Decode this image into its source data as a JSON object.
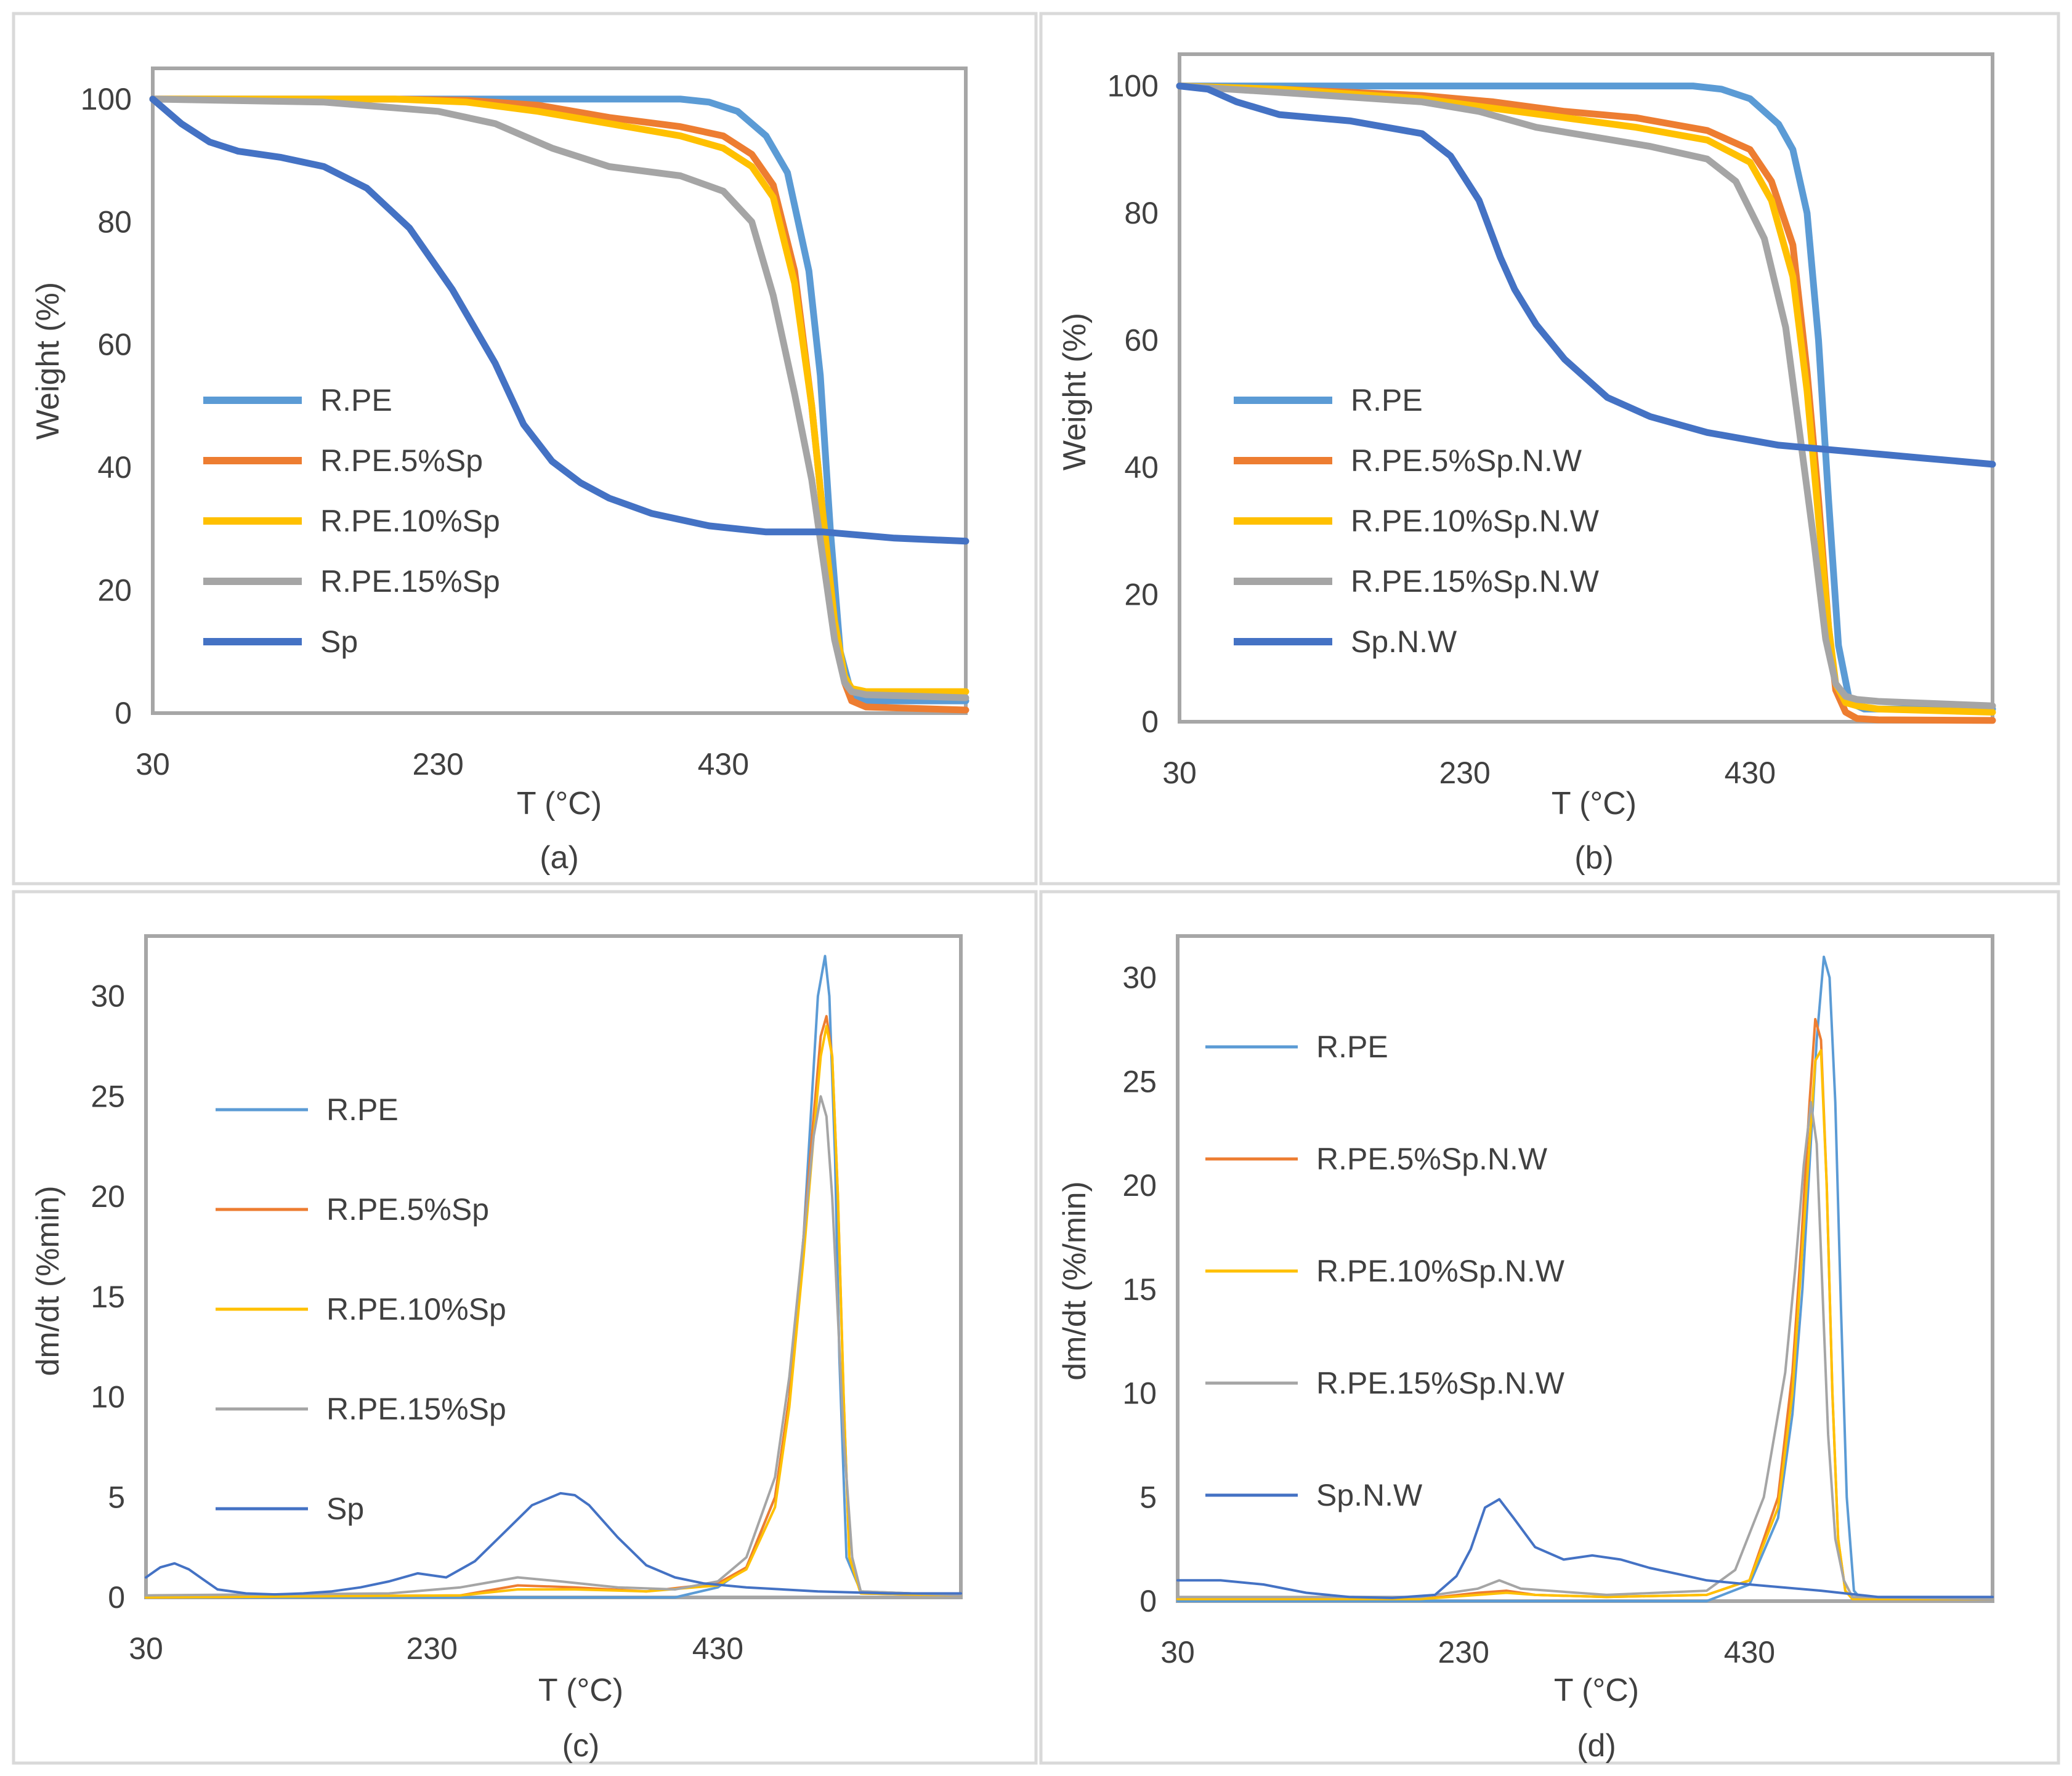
{
  "colors": {
    "R.PE": "#5b9bd5",
    "5pct": "#ed7d31",
    "10pct": "#ffc000",
    "15pct": "#a5a5a5",
    "Sp": "#4472c4"
  },
  "chart_data": [
    {
      "type": "line",
      "caption": "(a)",
      "xlabel": "T (°C)",
      "ylabel": "Weight (%)",
      "xlim": [
        30,
        600
      ],
      "ylim": [
        0,
        105
      ],
      "xticks": [
        30,
        230,
        430
      ],
      "yticks": [
        0,
        20,
        40,
        60,
        80,
        100
      ],
      "series": [
        {
          "name": "R.PE",
          "color": "#5b9bd5",
          "x": [
            30,
            200,
            400,
            420,
            440,
            460,
            475,
            490,
            498,
            505,
            512,
            520,
            530,
            600
          ],
          "y": [
            100,
            100,
            100,
            99.5,
            98,
            94,
            88,
            72,
            55,
            30,
            10,
            3,
            2,
            2
          ]
        },
        {
          "name": "R.PE.5%Sp",
          "color": "#ed7d31",
          "x": [
            30,
            200,
            250,
            300,
            350,
            400,
            430,
            450,
            465,
            480,
            492,
            500,
            508,
            515,
            520,
            530,
            600
          ],
          "y": [
            100,
            100,
            99.8,
            99,
            97,
            95.5,
            94,
            91,
            86,
            72,
            50,
            32,
            15,
            5,
            2,
            1,
            0.5
          ]
        },
        {
          "name": "R.PE.10%Sp",
          "color": "#ffc000",
          "x": [
            30,
            200,
            250,
            300,
            350,
            400,
            430,
            450,
            465,
            480,
            492,
            500,
            508,
            515,
            520,
            530,
            600
          ],
          "y": [
            100,
            100,
            99.5,
            98,
            96,
            94,
            92,
            89,
            84,
            70,
            50,
            32,
            15,
            6,
            4,
            3.5,
            3.5
          ]
        },
        {
          "name": "R.PE.15%Sp",
          "color": "#a5a5a5",
          "x": [
            30,
            150,
            230,
            270,
            310,
            350,
            400,
            430,
            450,
            465,
            480,
            492,
            500,
            508,
            515,
            520,
            530,
            600
          ],
          "y": [
            100,
            99.5,
            98,
            96,
            92,
            89,
            87.5,
            85,
            80,
            68,
            52,
            38,
            25,
            12,
            5,
            3.5,
            3,
            2.5
          ]
        },
        {
          "name": "Sp",
          "color": "#4472c4",
          "x": [
            30,
            50,
            70,
            90,
            120,
            150,
            180,
            210,
            240,
            270,
            290,
            310,
            330,
            350,
            380,
            420,
            460,
            500,
            550,
            600
          ],
          "y": [
            100,
            96,
            93,
            91.5,
            90.5,
            89,
            85.5,
            79,
            69,
            57,
            47,
            41,
            37.5,
            35,
            32.5,
            30.5,
            29.5,
            29.5,
            28.5,
            28
          ]
        }
      ]
    },
    {
      "type": "line",
      "caption": "(b)",
      "xlabel": "T (°C)",
      "ylabel": "Weight (%)",
      "xlim": [
        30,
        600
      ],
      "ylim": [
        0,
        105
      ],
      "xticks": [
        30,
        230,
        430
      ],
      "yticks": [
        0,
        20,
        40,
        60,
        80,
        100
      ],
      "series": [
        {
          "name": "R.PE",
          "color": "#5b9bd5",
          "x": [
            30,
            200,
            390,
            410,
            430,
            450,
            460,
            470,
            478,
            485,
            492,
            500,
            510,
            600
          ],
          "y": [
            100,
            100,
            100,
            99.5,
            98,
            94,
            90,
            80,
            60,
            35,
            12,
            3,
            2,
            2
          ]
        },
        {
          "name": "R.PE.5%Sp.N.W",
          "color": "#ed7d31",
          "x": [
            30,
            100,
            200,
            250,
            300,
            350,
            400,
            430,
            445,
            460,
            470,
            478,
            485,
            490,
            497,
            505,
            520,
            600
          ],
          "y": [
            100,
            99.5,
            98.5,
            97.5,
            96,
            95,
            93,
            90,
            85,
            75,
            55,
            35,
            15,
            5,
            1.5,
            0.5,
            0.3,
            0.2
          ]
        },
        {
          "name": "R.PE.10%Sp.N.W",
          "color": "#ffc000",
          "x": [
            30,
            100,
            200,
            250,
            300,
            350,
            400,
            430,
            445,
            460,
            470,
            478,
            485,
            490,
            497,
            505,
            520,
            600
          ],
          "y": [
            100,
            99.5,
            98,
            96.5,
            95,
            93.5,
            91.5,
            88,
            82,
            70,
            52,
            32,
            15,
            6,
            3,
            2.5,
            2,
            1.5
          ]
        },
        {
          "name": "R.PE.15%Sp.N.W",
          "color": "#a5a5a5",
          "x": [
            30,
            100,
            200,
            240,
            280,
            320,
            360,
            400,
            420,
            440,
            455,
            465,
            475,
            483,
            490,
            497,
            505,
            520,
            600
          ],
          "y": [
            100,
            99,
            97.5,
            96,
            93.5,
            92,
            90.5,
            88.5,
            85,
            76,
            62,
            45,
            28,
            13,
            6,
            4,
            3.5,
            3.2,
            2.5
          ]
        },
        {
          "name": "Sp.N.W",
          "color": "#4472c4",
          "x": [
            30,
            50,
            70,
            100,
            150,
            200,
            220,
            240,
            255,
            265,
            280,
            300,
            330,
            360,
            400,
            450,
            500,
            550,
            600
          ],
          "y": [
            100,
            99.5,
            97.5,
            95.5,
            94.5,
            92.5,
            89,
            82,
            73,
            68,
            62.5,
            57,
            51,
            48,
            45.5,
            43.5,
            42.5,
            41.5,
            40.5
          ]
        }
      ]
    },
    {
      "type": "line",
      "caption": "(c)",
      "xlabel": "T (°C)",
      "ylabel": "dm/dt (%min)",
      "xlim": [
        30,
        600
      ],
      "ylim": [
        0,
        33
      ],
      "xticks": [
        30,
        230,
        430
      ],
      "yticks": [
        0,
        5,
        10,
        15,
        20,
        25,
        30
      ],
      "series": [
        {
          "name": "R.PE",
          "color": "#5b9bd5",
          "x": [
            30,
            400,
            430,
            450,
            470,
            480,
            490,
            495,
            500,
            505,
            508,
            512,
            515,
            520,
            530,
            600
          ],
          "y": [
            0,
            0,
            0.5,
            1.5,
            5,
            10,
            18,
            24,
            30,
            32,
            30,
            22,
            12,
            2,
            0.3,
            0.1
          ]
        },
        {
          "name": "R.PE.5%Sp",
          "color": "#ed7d31",
          "x": [
            30,
            250,
            290,
            330,
            380,
            430,
            450,
            470,
            480,
            490,
            497,
            502,
            506,
            510,
            514,
            518,
            522,
            530,
            600
          ],
          "y": [
            0,
            0.1,
            0.6,
            0.5,
            0.3,
            0.7,
            1.5,
            5,
            10,
            18,
            24,
            28,
            29,
            27,
            20,
            10,
            2,
            0.2,
            0.1
          ]
        },
        {
          "name": "R.PE.10%Sp",
          "color": "#ffc000",
          "x": [
            30,
            250,
            290,
            330,
            380,
            430,
            450,
            470,
            480,
            490,
            497,
            502,
            506,
            510,
            514,
            518,
            522,
            530,
            600
          ],
          "y": [
            0,
            0.1,
            0.4,
            0.4,
            0.3,
            0.6,
            1.4,
            4.5,
            9.5,
            17,
            23,
            27,
            28.5,
            27,
            20,
            10,
            2,
            0.2,
            0.1
          ]
        },
        {
          "name": "R.PE.15%Sp",
          "color": "#a5a5a5",
          "x": [
            30,
            200,
            250,
            290,
            320,
            360,
            400,
            430,
            450,
            470,
            480,
            490,
            497,
            502,
            506,
            510,
            514,
            518,
            524,
            530,
            600
          ],
          "y": [
            0.1,
            0.2,
            0.5,
            1,
            0.8,
            0.5,
            0.4,
            0.8,
            2,
            6,
            11,
            18,
            23,
            25,
            24,
            20,
            14,
            8,
            2,
            0.3,
            0.1
          ]
        },
        {
          "name": "Sp",
          "color": "#4472c4",
          "x": [
            30,
            40,
            50,
            60,
            70,
            80,
            100,
            120,
            140,
            160,
            180,
            200,
            220,
            240,
            260,
            280,
            300,
            320,
            330,
            340,
            360,
            380,
            400,
            420,
            450,
            500,
            550,
            600
          ],
          "y": [
            1,
            1.5,
            1.7,
            1.4,
            0.9,
            0.4,
            0.2,
            0.15,
            0.2,
            0.3,
            0.5,
            0.8,
            1.2,
            1,
            1.8,
            3.2,
            4.6,
            5.2,
            5.1,
            4.6,
            3,
            1.6,
            1,
            0.7,
            0.5,
            0.3,
            0.2,
            0.2
          ]
        }
      ]
    },
    {
      "type": "line",
      "caption": "(d)",
      "xlabel": "T (°C)",
      "ylabel": "dm/dt (%/min)",
      "xlim": [
        30,
        600
      ],
      "ylim": [
        0,
        32
      ],
      "xticks": [
        30,
        230,
        430
      ],
      "yticks": [
        0,
        5,
        10,
        15,
        20,
        25,
        30
      ],
      "series": [
        {
          "name": "R.PE",
          "color": "#5b9bd5",
          "x": [
            30,
            400,
            430,
            450,
            460,
            467,
            472,
            477,
            482,
            486,
            490,
            494,
            498,
            503,
            508,
            600
          ],
          "y": [
            0,
            0,
            0.8,
            4,
            9,
            15,
            21,
            27,
            31,
            30,
            24,
            14,
            5,
            0.5,
            0.1,
            0.1
          ]
        },
        {
          "name": "R.PE.5%Sp.N.W",
          "color": "#ed7d31",
          "x": [
            30,
            200,
            240,
            260,
            280,
            330,
            400,
            430,
            450,
            460,
            466,
            472,
            476,
            480,
            484,
            488,
            492,
            497,
            502,
            600
          ],
          "y": [
            0.1,
            0.1,
            0.4,
            0.5,
            0.3,
            0.2,
            0.3,
            1,
            5,
            11,
            17,
            24,
            28,
            27,
            20,
            10,
            3,
            0.5,
            0.1,
            0.1
          ]
        },
        {
          "name": "R.PE.10%Sp.N.W",
          "color": "#ffc000",
          "x": [
            30,
            200,
            240,
            260,
            280,
            330,
            400,
            430,
            450,
            460,
            466,
            472,
            476,
            480,
            484,
            488,
            492,
            497,
            502,
            600
          ],
          "y": [
            0.1,
            0.1,
            0.3,
            0.4,
            0.3,
            0.2,
            0.3,
            1,
            4.5,
            10,
            16,
            22,
            26,
            26.5,
            20,
            10,
            3,
            0.5,
            0.1,
            0.1
          ]
        },
        {
          "name": "R.PE.15%Sp.N.W",
          "color": "#a5a5a5",
          "x": [
            30,
            200,
            240,
            255,
            270,
            330,
            400,
            420,
            440,
            455,
            462,
            468,
            473,
            477,
            481,
            485,
            490,
            496,
            502,
            600
          ],
          "y": [
            0.2,
            0.2,
            0.6,
            1,
            0.6,
            0.3,
            0.5,
            1.5,
            5,
            11,
            16,
            21,
            24,
            22,
            15,
            8,
            3,
            1,
            0.2,
            0.1
          ]
        },
        {
          "name": "Sp.N.W",
          "color": "#4472c4",
          "x": [
            30,
            60,
            90,
            120,
            150,
            180,
            210,
            225,
            235,
            245,
            255,
            265,
            280,
            300,
            320,
            340,
            360,
            380,
            400,
            430,
            480,
            520,
            560,
            600
          ],
          "y": [
            1,
            1,
            0.8,
            0.4,
            0.2,
            0.15,
            0.3,
            1.2,
            2.5,
            4.5,
            4.9,
            4,
            2.6,
            2,
            2.2,
            2,
            1.6,
            1.3,
            1,
            0.8,
            0.5,
            0.2,
            0.2,
            0.2
          ]
        }
      ]
    }
  ]
}
